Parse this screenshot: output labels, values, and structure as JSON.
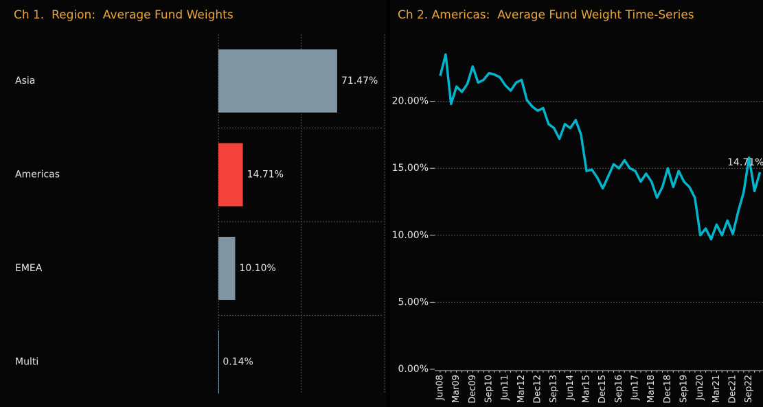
{
  "chart_data": [
    {
      "type": "hbar",
      "title": "Ch 1.  Region:  Average Fund Weights",
      "categories": [
        "Asia",
        "Americas",
        "EMEA",
        "Multi"
      ],
      "values": [
        71.47,
        14.71,
        10.1,
        0.14
      ],
      "value_labels": [
        "71.47%",
        "14.71%",
        "10.10%",
        "0.14%"
      ],
      "colors": [
        "#7f95a1",
        "#f4433a",
        "#7f95a1",
        "#7f95a1"
      ],
      "xlim": [
        0,
        100
      ],
      "xticks": [
        0,
        50,
        100
      ],
      "grid": true
    },
    {
      "type": "line",
      "title": "Ch 2. Americas:  Average Fund Weight Time-Series",
      "categories": [
        "Jun08",
        null,
        null,
        "Mar09",
        null,
        null,
        "Dec09",
        null,
        null,
        "Sep10",
        null,
        null,
        "Jun11",
        null,
        null,
        "Mar12",
        null,
        null,
        "Dec12",
        null,
        null,
        "Sep13",
        null,
        null,
        "Jun14",
        null,
        null,
        "Mar15",
        null,
        null,
        "Dec15",
        null,
        null,
        "Sep16",
        null,
        null,
        "Jun17",
        null,
        null,
        "Mar18",
        null,
        null,
        "Dec18",
        null,
        null,
        "Sep19",
        null,
        null,
        "Jun20",
        null,
        null,
        "Mar21",
        null,
        null,
        "Dec21",
        null,
        null,
        "Sep22",
        null,
        null
      ],
      "series": [
        {
          "name": "Americas",
          "color": "#00b5cc",
          "values": [
            21.9,
            23.5,
            19.8,
            21.1,
            20.7,
            21.3,
            22.6,
            21.4,
            21.6,
            22.1,
            22.0,
            21.8,
            21.2,
            20.8,
            21.4,
            21.6,
            20.1,
            19.6,
            19.3,
            19.5,
            18.3,
            18.0,
            17.2,
            18.3,
            18.0,
            18.6,
            17.5,
            14.8,
            14.9,
            14.3,
            13.5,
            14.4,
            15.3,
            15.0,
            15.6,
            15.0,
            14.8,
            14.0,
            14.6,
            14.0,
            12.8,
            13.6,
            15.0,
            13.6,
            14.8,
            14.0,
            13.6,
            12.8,
            10.0,
            10.5,
            9.7,
            10.8,
            10.0,
            11.1,
            10.1,
            11.8,
            13.2,
            15.8,
            13.3,
            14.71
          ],
          "value_labels": [
            null,
            null,
            null,
            null,
            null,
            null,
            null,
            null,
            null,
            null,
            null,
            null,
            null,
            null,
            null,
            null,
            null,
            null,
            null,
            null,
            null,
            null,
            null,
            null,
            null,
            null,
            null,
            null,
            null,
            null,
            null,
            null,
            null,
            null,
            null,
            null,
            null,
            null,
            null,
            null,
            null,
            null,
            null,
            null,
            null,
            null,
            null,
            null,
            null,
            null,
            null,
            null,
            null,
            null,
            null,
            null,
            null,
            null,
            null,
            "14.71%"
          ]
        }
      ],
      "ylim": [
        0,
        25
      ],
      "yticks": [
        {
          "value": 0,
          "label": "0.00%"
        },
        {
          "value": 5,
          "label": "5.00%"
        },
        {
          "value": 10,
          "label": "10.00%"
        },
        {
          "value": 15,
          "label": "15.00%"
        },
        {
          "value": 20,
          "label": "20.00%"
        }
      ],
      "grid": true
    }
  ]
}
